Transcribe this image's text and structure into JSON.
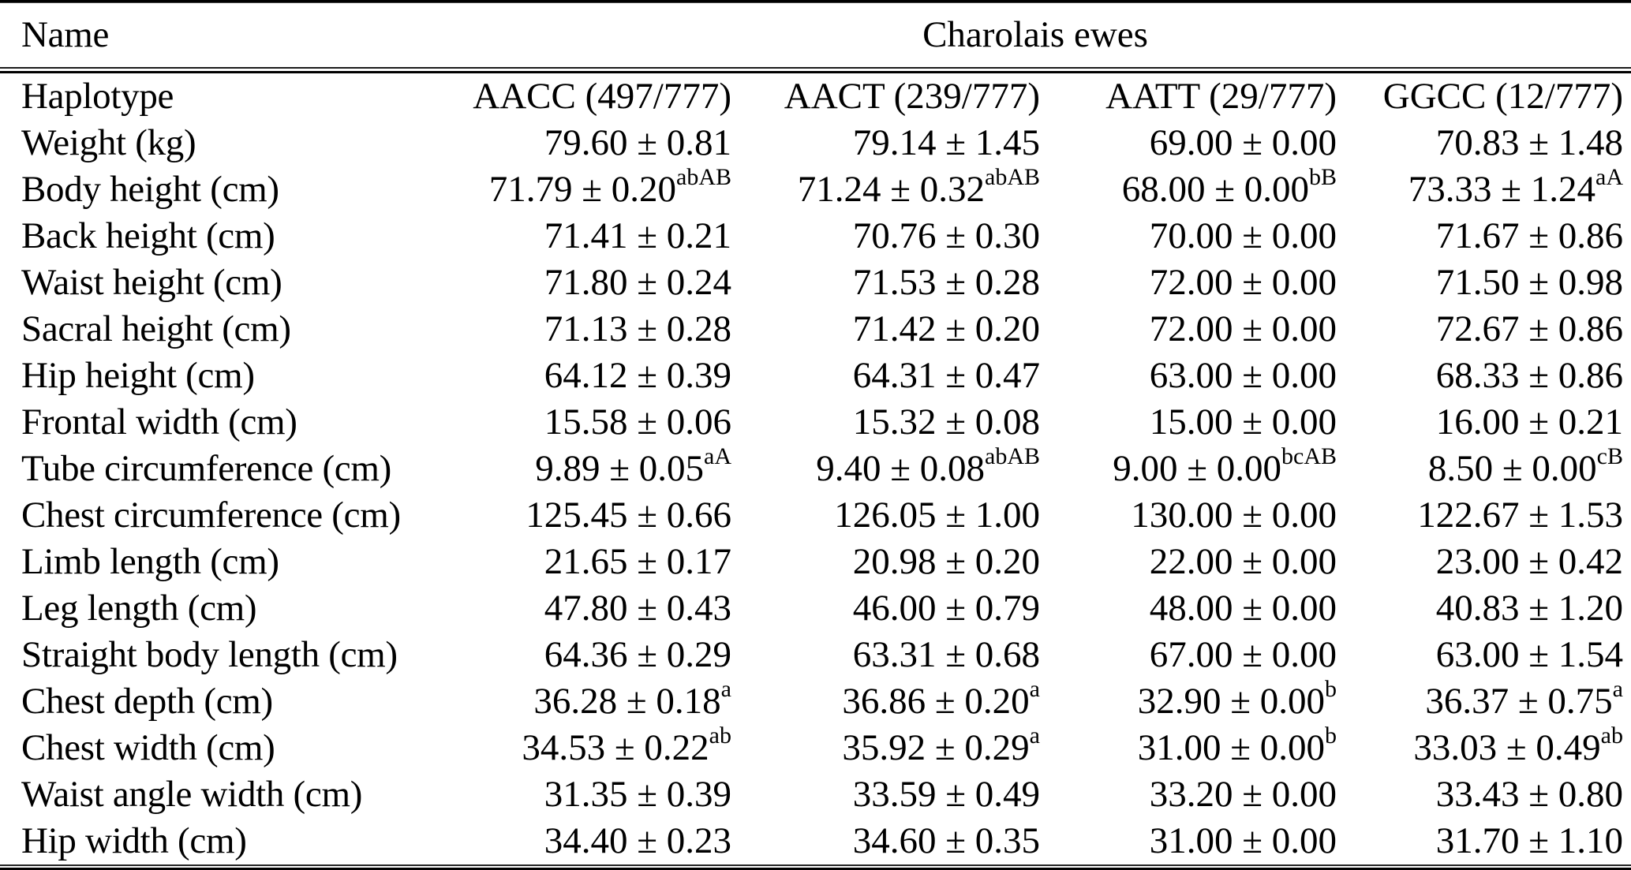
{
  "table": {
    "name_header": "Name",
    "group_header": "Charolais ewes",
    "header_row": {
      "label": "Haplotype",
      "cells": [
        "AACC (497/777)",
        "AACT (239/777)",
        "AATT (29/777)",
        "GGCC (12/777)"
      ]
    },
    "rows": [
      {
        "label": "Weight (kg)",
        "cells": [
          {
            "text": "79.60 ± 0.81",
            "sup": ""
          },
          {
            "text": "79.14 ± 1.45",
            "sup": ""
          },
          {
            "text": "69.00 ± 0.00",
            "sup": ""
          },
          {
            "text": "70.83 ± 1.48",
            "sup": ""
          }
        ]
      },
      {
        "label": "Body height (cm)",
        "cells": [
          {
            "text": "71.79 ± 0.20",
            "sup": "abAB"
          },
          {
            "text": "71.24 ± 0.32",
            "sup": "abAB"
          },
          {
            "text": "68.00 ± 0.00",
            "sup": "bB"
          },
          {
            "text": "73.33 ± 1.24",
            "sup": "aA"
          }
        ]
      },
      {
        "label": "Back height (cm)",
        "cells": [
          {
            "text": "71.41 ± 0.21",
            "sup": ""
          },
          {
            "text": "70.76 ± 0.30",
            "sup": ""
          },
          {
            "text": "70.00 ± 0.00",
            "sup": ""
          },
          {
            "text": "71.67 ± 0.86",
            "sup": ""
          }
        ]
      },
      {
        "label": "Waist height (cm)",
        "cells": [
          {
            "text": "71.80 ± 0.24",
            "sup": ""
          },
          {
            "text": "71.53 ± 0.28",
            "sup": ""
          },
          {
            "text": "72.00 ± 0.00",
            "sup": ""
          },
          {
            "text": "71.50 ± 0.98",
            "sup": ""
          }
        ]
      },
      {
        "label": "Sacral height (cm)",
        "cells": [
          {
            "text": "71.13 ± 0.28",
            "sup": ""
          },
          {
            "text": "71.42 ± 0.20",
            "sup": ""
          },
          {
            "text": "72.00 ± 0.00",
            "sup": ""
          },
          {
            "text": "72.67 ± 0.86",
            "sup": ""
          }
        ]
      },
      {
        "label": "Hip height (cm)",
        "cells": [
          {
            "text": "64.12 ± 0.39",
            "sup": ""
          },
          {
            "text": "64.31 ± 0.47",
            "sup": ""
          },
          {
            "text": "63.00 ± 0.00",
            "sup": ""
          },
          {
            "text": "68.33 ± 0.86",
            "sup": ""
          }
        ]
      },
      {
        "label": "Frontal width (cm)",
        "cells": [
          {
            "text": "15.58 ± 0.06",
            "sup": ""
          },
          {
            "text": "15.32 ± 0.08",
            "sup": ""
          },
          {
            "text": "15.00 ± 0.00",
            "sup": ""
          },
          {
            "text": "16.00 ± 0.21",
            "sup": ""
          }
        ]
      },
      {
        "label": "Tube circumference (cm)",
        "cells": [
          {
            "text": "9.89 ± 0.05",
            "sup": "aA"
          },
          {
            "text": "9.40 ± 0.08",
            "sup": "abAB"
          },
          {
            "text": "9.00 ± 0.00",
            "sup": "bcAB"
          },
          {
            "text": "8.50 ± 0.00",
            "sup": "cB"
          }
        ]
      },
      {
        "label": "Chest circumference (cm)",
        "cells": [
          {
            "text": "125.45 ± 0.66",
            "sup": ""
          },
          {
            "text": "126.05 ± 1.00",
            "sup": ""
          },
          {
            "text": "130.00 ± 0.00",
            "sup": ""
          },
          {
            "text": "122.67 ± 1.53",
            "sup": ""
          }
        ]
      },
      {
        "label": "Limb length (cm)",
        "cells": [
          {
            "text": "21.65 ± 0.17",
            "sup": ""
          },
          {
            "text": "20.98 ± 0.20",
            "sup": ""
          },
          {
            "text": "22.00 ± 0.00",
            "sup": ""
          },
          {
            "text": "23.00 ± 0.42",
            "sup": ""
          }
        ]
      },
      {
        "label": "Leg length (cm)",
        "cells": [
          {
            "text": "47.80 ± 0.43",
            "sup": ""
          },
          {
            "text": "46.00 ± 0.79",
            "sup": ""
          },
          {
            "text": "48.00 ± 0.00",
            "sup": ""
          },
          {
            "text": "40.83 ± 1.20",
            "sup": ""
          }
        ]
      },
      {
        "label": "Straight body length (cm)",
        "cells": [
          {
            "text": "64.36 ± 0.29",
            "sup": ""
          },
          {
            "text": "63.31 ± 0.68",
            "sup": ""
          },
          {
            "text": "67.00 ± 0.00",
            "sup": ""
          },
          {
            "text": "63.00 ± 1.54",
            "sup": ""
          }
        ]
      },
      {
        "label": "Chest depth (cm)",
        "cells": [
          {
            "text": "36.28 ± 0.18",
            "sup": "a"
          },
          {
            "text": "36.86 ± 0.20",
            "sup": "a"
          },
          {
            "text": "32.90 ± 0.00",
            "sup": "b"
          },
          {
            "text": "36.37 ± 0.75",
            "sup": "a"
          }
        ]
      },
      {
        "label": "Chest width (cm)",
        "cells": [
          {
            "text": "34.53 ± 0.22",
            "sup": "ab"
          },
          {
            "text": "35.92 ± 0.29",
            "sup": "a"
          },
          {
            "text": "31.00 ± 0.00",
            "sup": "b"
          },
          {
            "text": "33.03 ± 0.49",
            "sup": "ab"
          }
        ]
      },
      {
        "label": "Waist angle width (cm)",
        "cells": [
          {
            "text": "31.35 ± 0.39",
            "sup": ""
          },
          {
            "text": "33.59 ± 0.49",
            "sup": ""
          },
          {
            "text": "33.20 ± 0.00",
            "sup": ""
          },
          {
            "text": "33.43 ± 0.80",
            "sup": ""
          }
        ]
      },
      {
        "label": "Hip width (cm)",
        "cells": [
          {
            "text": "34.40 ± 0.23",
            "sup": ""
          },
          {
            "text": "34.60 ± 0.35",
            "sup": ""
          },
          {
            "text": "31.00 ± 0.00",
            "sup": ""
          },
          {
            "text": "31.70 ± 1.10",
            "sup": ""
          }
        ]
      }
    ],
    "colors": {
      "text": "#000000",
      "background": "#ffffff",
      "rule": "#000000"
    }
  }
}
